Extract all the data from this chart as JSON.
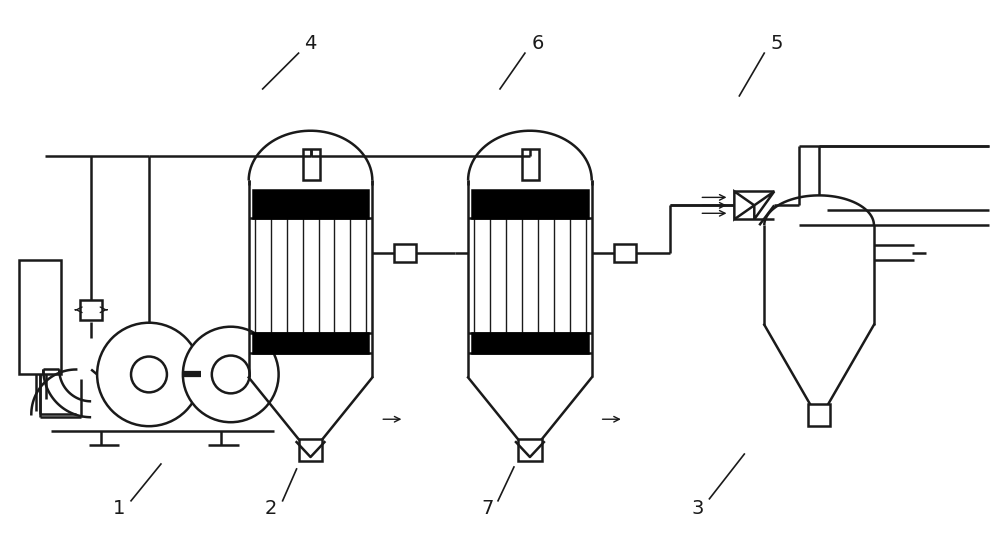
{
  "bg": "#ffffff",
  "lc": "#1a1a1a",
  "lw": 1.8,
  "fs": 14
}
